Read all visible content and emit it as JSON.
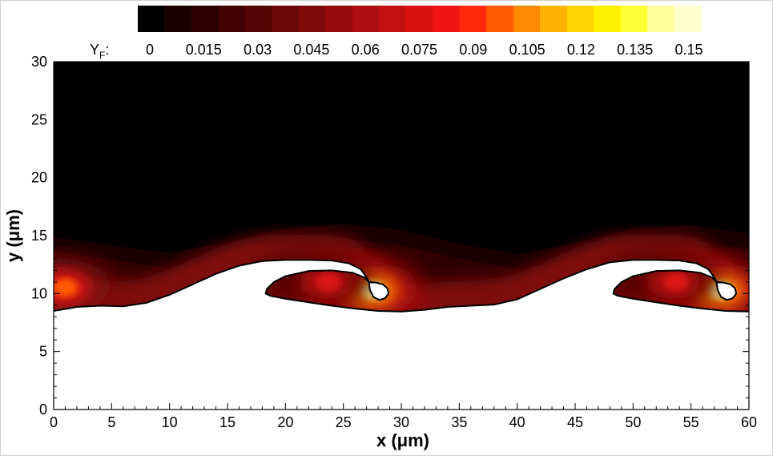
{
  "chart_data": {
    "type": "heatmap",
    "title": "",
    "xlabel": "x (μm)",
    "ylabel": "y (μm)",
    "xlim": [
      0,
      60
    ],
    "ylim": [
      0,
      30
    ],
    "x_ticks": [
      "0",
      "5",
      "10",
      "15",
      "20",
      "25",
      "30",
      "35",
      "40",
      "45",
      "50",
      "55",
      "60"
    ],
    "y_ticks": [
      "0",
      "5",
      "10",
      "15",
      "20",
      "25",
      "30"
    ],
    "colorbar": {
      "variable": "Y",
      "variable_subscript": "F",
      "suffix": ":",
      "levels": [
        0,
        0.0075,
        0.015,
        0.0225,
        0.03,
        0.0375,
        0.045,
        0.0525,
        0.06,
        0.0675,
        0.075,
        0.0825,
        0.09,
        0.0975,
        0.105,
        0.1125,
        0.12,
        0.1275,
        0.135,
        0.1425,
        0.15
      ],
      "labels": [
        "0",
        "0.015",
        "0.03",
        "0.045",
        "0.06",
        "0.075",
        "0.09",
        "0.105",
        "0.12",
        "0.135",
        "0.15"
      ],
      "colors": [
        "#000000",
        "#1a0000",
        "#2e0101",
        "#420303",
        "#560505",
        "#6b0707",
        "#800909",
        "#960b0b",
        "#ad0e0e",
        "#c41010",
        "#db1212",
        "#f01414",
        "#ff2a0a",
        "#ff5a00",
        "#ff8a00",
        "#ffb300",
        "#ffd400",
        "#fff000",
        "#ffff33",
        "#ffff99",
        "#ffffd0"
      ]
    },
    "interface_contour": {
      "color": "#000000",
      "points": [
        [
          0,
          8.5
        ],
        [
          2,
          8.85
        ],
        [
          4,
          8.95
        ],
        [
          6,
          8.9
        ],
        [
          8,
          9.2
        ],
        [
          10,
          9.9
        ],
        [
          12,
          10.8
        ],
        [
          14,
          11.7
        ],
        [
          16,
          12.4
        ],
        [
          18,
          12.8
        ],
        [
          20,
          12.9
        ],
        [
          22,
          12.9
        ],
        [
          24,
          12.85
        ],
        [
          25.5,
          12.6
        ],
        [
          26.5,
          12.1
        ],
        [
          27,
          11.4
        ],
        [
          27.2,
          11.0
        ],
        [
          27.8,
          10.95
        ],
        [
          28.4,
          10.8
        ],
        [
          28.8,
          10.45
        ],
        [
          28.9,
          10.0
        ],
        [
          28.6,
          9.6
        ],
        [
          28.1,
          9.45
        ],
        [
          27.6,
          9.7
        ],
        [
          27.3,
          10.3
        ],
        [
          27.2,
          11.0
        ],
        [
          26.8,
          11.4
        ],
        [
          25.8,
          11.8
        ],
        [
          24,
          12.0
        ],
        [
          22,
          11.95
        ],
        [
          20,
          11.5
        ],
        [
          19,
          11.0
        ],
        [
          18.4,
          10.4
        ],
        [
          18.3,
          10.0
        ],
        [
          18.7,
          9.8
        ],
        [
          20,
          9.55
        ],
        [
          22,
          9.25
        ],
        [
          24,
          8.95
        ],
        [
          26,
          8.7
        ],
        [
          28,
          8.5
        ],
        [
          30,
          8.45
        ],
        [
          32,
          8.6
        ],
        [
          34,
          8.85
        ],
        [
          36,
          8.95
        ],
        [
          38,
          9.05
        ],
        [
          40,
          9.5
        ],
        [
          42,
          10.4
        ],
        [
          44,
          11.3
        ],
        [
          46,
          12.1
        ],
        [
          48,
          12.7
        ],
        [
          50,
          12.9
        ],
        [
          52,
          12.9
        ],
        [
          54,
          12.85
        ],
        [
          55.5,
          12.6
        ],
        [
          56.5,
          12.1
        ],
        [
          57,
          11.4
        ],
        [
          57.2,
          11.0
        ],
        [
          57.8,
          10.95
        ],
        [
          58.4,
          10.8
        ],
        [
          58.8,
          10.45
        ],
        [
          58.9,
          10.0
        ],
        [
          58.6,
          9.6
        ],
        [
          58.1,
          9.45
        ],
        [
          57.6,
          9.7
        ],
        [
          57.3,
          10.3
        ],
        [
          57.2,
          11.0
        ],
        [
          56.8,
          11.4
        ],
        [
          55.8,
          11.8
        ],
        [
          54,
          12.0
        ],
        [
          52,
          11.95
        ],
        [
          50,
          11.5
        ],
        [
          49,
          11.0
        ],
        [
          48.4,
          10.4
        ],
        [
          48.3,
          10.0
        ],
        [
          48.7,
          9.8
        ],
        [
          50,
          9.55
        ],
        [
          52,
          9.25
        ],
        [
          54,
          8.95
        ],
        [
          56,
          8.7
        ],
        [
          58,
          8.5
        ],
        [
          60,
          8.45
        ]
      ]
    },
    "diffuse_layer_top": [
      [
        0,
        14.9
      ],
      [
        5,
        14.2
      ],
      [
        10,
        13.5
      ],
      [
        15,
        14.4
      ],
      [
        20,
        15.6
      ],
      [
        25,
        16.0
      ],
      [
        30,
        15.5
      ],
      [
        35,
        14.3
      ],
      [
        40,
        13.4
      ],
      [
        45,
        14.3
      ],
      [
        50,
        15.6
      ],
      [
        55,
        15.9
      ],
      [
        60,
        15.2
      ]
    ],
    "hot_spots": [
      {
        "cx": 27.3,
        "cy": 10.3,
        "peak": 0.15
      },
      {
        "cx": 23.5,
        "cy": 11.0,
        "peak": 0.08
      },
      {
        "cx": 57.3,
        "cy": 10.3,
        "peak": 0.15
      },
      {
        "cx": 53.5,
        "cy": 11.0,
        "peak": 0.08
      },
      {
        "cx": 0.8,
        "cy": 10.5,
        "peak": 0.1
      }
    ]
  }
}
